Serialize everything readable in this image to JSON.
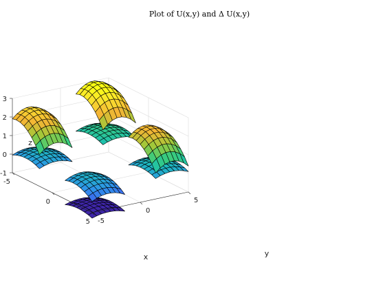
{
  "chart_data": {
    "type": "surface",
    "title": "Plot of U(x,y) and Δ U(x,y)",
    "xlabel": "x",
    "ylabel": "y",
    "zlabel": "z",
    "xlim": [
      -5,
      5
    ],
    "ylim": [
      -5,
      5
    ],
    "zlim": [
      -1,
      3
    ],
    "x_ticks": [
      "-5",
      "0",
      "5"
    ],
    "y_ticks": [
      "-5",
      "0",
      "5"
    ],
    "z_ticks": [
      "-1",
      "0",
      "1",
      "2",
      "3"
    ],
    "grid": true,
    "colormap": "parula",
    "colors": [
      "#3e26a8",
      "#4352ec",
      "#2f92eb",
      "#19bfb6",
      "#37cb80",
      "#9cc93a",
      "#f4b534",
      "#f9e12f",
      "#fbff14"
    ],
    "surfaces": [
      {
        "x_range": [
          -5,
          -1.6
        ],
        "y_range": [
          -5,
          -1.6
        ],
        "z_center": 2.2,
        "curv": 0.9,
        "dz": 1.2,
        "mesh": 7
      },
      {
        "x_range": [
          -5,
          -1.6
        ],
        "y_range": [
          -5,
          -1.6
        ],
        "z_center": 0.35,
        "curv": 0.4,
        "dz": 0.0,
        "mesh": 7
      },
      {
        "x_range": [
          -5,
          -1.6
        ],
        "y_range": [
          1.6,
          5
        ],
        "z_center": 2.9,
        "curv": 1.0,
        "dz": 1.2,
        "mesh": 7
      },
      {
        "x_range": [
          -5,
          -1.6
        ],
        "y_range": [
          1.6,
          5
        ],
        "z_center": 0.9,
        "curv": 0.4,
        "dz": 0.0,
        "mesh": 7
      },
      {
        "x_range": [
          1.6,
          5
        ],
        "y_range": [
          -5,
          -1.6
        ],
        "z_center": 0.3,
        "curv": 0.5,
        "dz": 0.4,
        "mesh": 7
      },
      {
        "x_range": [
          1.6,
          5
        ],
        "y_range": [
          -5,
          -1.6
        ],
        "z_center": -1.0,
        "curv": 0.3,
        "dz": 0.0,
        "mesh": 7
      },
      {
        "x_range": [
          1.6,
          5
        ],
        "y_range": [
          1.6,
          5
        ],
        "z_center": 1.9,
        "curv": 0.9,
        "dz": 1.2,
        "mesh": 7
      },
      {
        "x_range": [
          1.6,
          5
        ],
        "y_range": [
          1.6,
          5
        ],
        "z_center": 0.5,
        "curv": 0.4,
        "dz": 0.0,
        "mesh": 7
      }
    ]
  }
}
